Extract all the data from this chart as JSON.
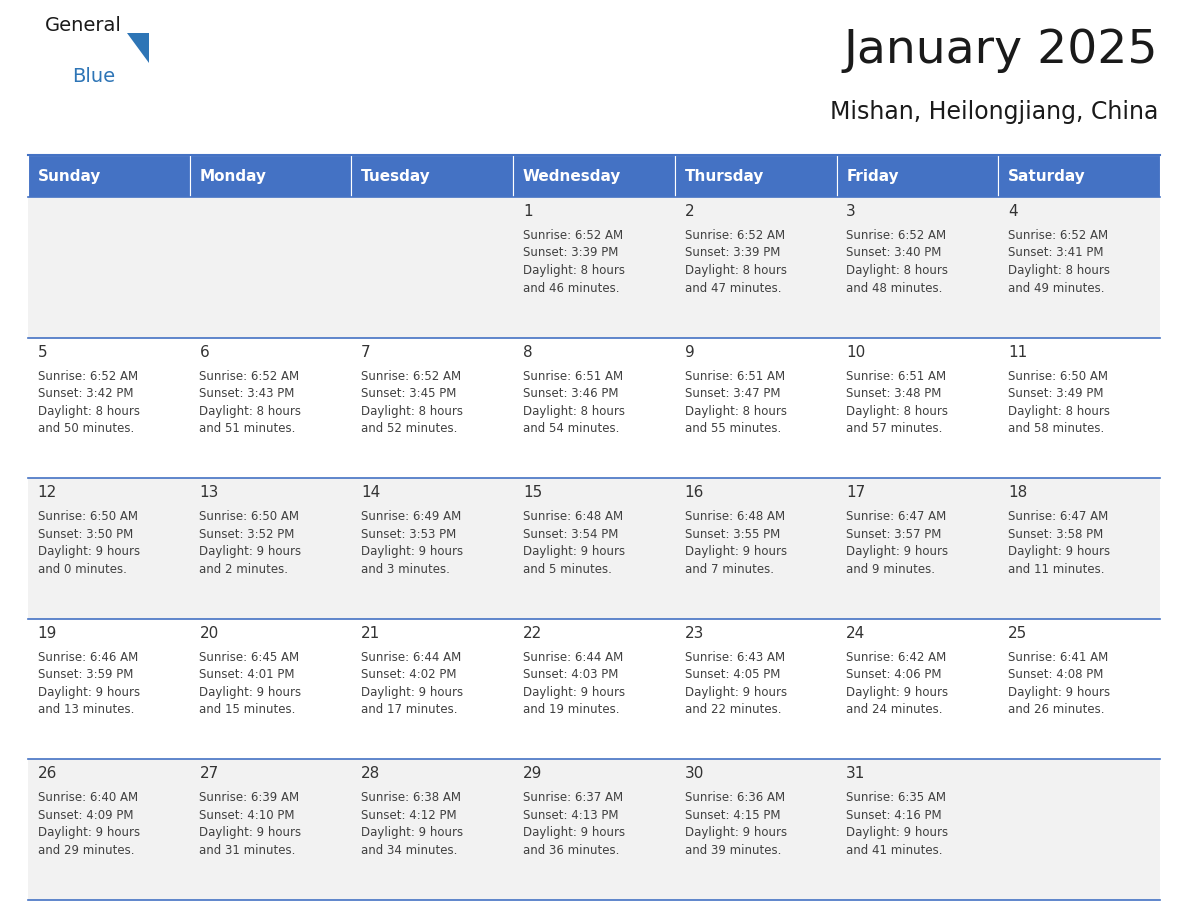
{
  "title": "January 2025",
  "subtitle": "Mishan, Heilongjiang, China",
  "days_of_week": [
    "Sunday",
    "Monday",
    "Tuesday",
    "Wednesday",
    "Thursday",
    "Friday",
    "Saturday"
  ],
  "header_bg": "#4472C4",
  "header_text": "#FFFFFF",
  "row_bg_odd": "#F2F2F2",
  "row_bg_even": "#FFFFFF",
  "cell_text_color": "#404040",
  "day_num_color": "#333333",
  "border_color": "#4472C4",
  "title_color": "#1a1a1a",
  "subtitle_color": "#1a1a1a",
  "calendar_data": [
    [
      {
        "day": "",
        "sunrise": "",
        "sunset": "",
        "daylight": ""
      },
      {
        "day": "",
        "sunrise": "",
        "sunset": "",
        "daylight": ""
      },
      {
        "day": "",
        "sunrise": "",
        "sunset": "",
        "daylight": ""
      },
      {
        "day": "1",
        "sunrise": "6:52 AM",
        "sunset": "3:39 PM",
        "daylight_line1": "8 hours",
        "daylight_line2": "and 46 minutes."
      },
      {
        "day": "2",
        "sunrise": "6:52 AM",
        "sunset": "3:39 PM",
        "daylight_line1": "8 hours",
        "daylight_line2": "and 47 minutes."
      },
      {
        "day": "3",
        "sunrise": "6:52 AM",
        "sunset": "3:40 PM",
        "daylight_line1": "8 hours",
        "daylight_line2": "and 48 minutes."
      },
      {
        "day": "4",
        "sunrise": "6:52 AM",
        "sunset": "3:41 PM",
        "daylight_line1": "8 hours",
        "daylight_line2": "and 49 minutes."
      }
    ],
    [
      {
        "day": "5",
        "sunrise": "6:52 AM",
        "sunset": "3:42 PM",
        "daylight_line1": "8 hours",
        "daylight_line2": "and 50 minutes."
      },
      {
        "day": "6",
        "sunrise": "6:52 AM",
        "sunset": "3:43 PM",
        "daylight_line1": "8 hours",
        "daylight_line2": "and 51 minutes."
      },
      {
        "day": "7",
        "sunrise": "6:52 AM",
        "sunset": "3:45 PM",
        "daylight_line1": "8 hours",
        "daylight_line2": "and 52 minutes."
      },
      {
        "day": "8",
        "sunrise": "6:51 AM",
        "sunset": "3:46 PM",
        "daylight_line1": "8 hours",
        "daylight_line2": "and 54 minutes."
      },
      {
        "day": "9",
        "sunrise": "6:51 AM",
        "sunset": "3:47 PM",
        "daylight_line1": "8 hours",
        "daylight_line2": "and 55 minutes."
      },
      {
        "day": "10",
        "sunrise": "6:51 AM",
        "sunset": "3:48 PM",
        "daylight_line1": "8 hours",
        "daylight_line2": "and 57 minutes."
      },
      {
        "day": "11",
        "sunrise": "6:50 AM",
        "sunset": "3:49 PM",
        "daylight_line1": "8 hours",
        "daylight_line2": "and 58 minutes."
      }
    ],
    [
      {
        "day": "12",
        "sunrise": "6:50 AM",
        "sunset": "3:50 PM",
        "daylight_line1": "9 hours",
        "daylight_line2": "and 0 minutes."
      },
      {
        "day": "13",
        "sunrise": "6:50 AM",
        "sunset": "3:52 PM",
        "daylight_line1": "9 hours",
        "daylight_line2": "and 2 minutes."
      },
      {
        "day": "14",
        "sunrise": "6:49 AM",
        "sunset": "3:53 PM",
        "daylight_line1": "9 hours",
        "daylight_line2": "and 3 minutes."
      },
      {
        "day": "15",
        "sunrise": "6:48 AM",
        "sunset": "3:54 PM",
        "daylight_line1": "9 hours",
        "daylight_line2": "and 5 minutes."
      },
      {
        "day": "16",
        "sunrise": "6:48 AM",
        "sunset": "3:55 PM",
        "daylight_line1": "9 hours",
        "daylight_line2": "and 7 minutes."
      },
      {
        "day": "17",
        "sunrise": "6:47 AM",
        "sunset": "3:57 PM",
        "daylight_line1": "9 hours",
        "daylight_line2": "and 9 minutes."
      },
      {
        "day": "18",
        "sunrise": "6:47 AM",
        "sunset": "3:58 PM",
        "daylight_line1": "9 hours",
        "daylight_line2": "and 11 minutes."
      }
    ],
    [
      {
        "day": "19",
        "sunrise": "6:46 AM",
        "sunset": "3:59 PM",
        "daylight_line1": "9 hours",
        "daylight_line2": "and 13 minutes."
      },
      {
        "day": "20",
        "sunrise": "6:45 AM",
        "sunset": "4:01 PM",
        "daylight_line1": "9 hours",
        "daylight_line2": "and 15 minutes."
      },
      {
        "day": "21",
        "sunrise": "6:44 AM",
        "sunset": "4:02 PM",
        "daylight_line1": "9 hours",
        "daylight_line2": "and 17 minutes."
      },
      {
        "day": "22",
        "sunrise": "6:44 AM",
        "sunset": "4:03 PM",
        "daylight_line1": "9 hours",
        "daylight_line2": "and 19 minutes."
      },
      {
        "day": "23",
        "sunrise": "6:43 AM",
        "sunset": "4:05 PM",
        "daylight_line1": "9 hours",
        "daylight_line2": "and 22 minutes."
      },
      {
        "day": "24",
        "sunrise": "6:42 AM",
        "sunset": "4:06 PM",
        "daylight_line1": "9 hours",
        "daylight_line2": "and 24 minutes."
      },
      {
        "day": "25",
        "sunrise": "6:41 AM",
        "sunset": "4:08 PM",
        "daylight_line1": "9 hours",
        "daylight_line2": "and 26 minutes."
      }
    ],
    [
      {
        "day": "26",
        "sunrise": "6:40 AM",
        "sunset": "4:09 PM",
        "daylight_line1": "9 hours",
        "daylight_line2": "and 29 minutes."
      },
      {
        "day": "27",
        "sunrise": "6:39 AM",
        "sunset": "4:10 PM",
        "daylight_line1": "9 hours",
        "daylight_line2": "and 31 minutes."
      },
      {
        "day": "28",
        "sunrise": "6:38 AM",
        "sunset": "4:12 PM",
        "daylight_line1": "9 hours",
        "daylight_line2": "and 34 minutes."
      },
      {
        "day": "29",
        "sunrise": "6:37 AM",
        "sunset": "4:13 PM",
        "daylight_line1": "9 hours",
        "daylight_line2": "and 36 minutes."
      },
      {
        "day": "30",
        "sunrise": "6:36 AM",
        "sunset": "4:15 PM",
        "daylight_line1": "9 hours",
        "daylight_line2": "and 39 minutes."
      },
      {
        "day": "31",
        "sunrise": "6:35 AM",
        "sunset": "4:16 PM",
        "daylight_line1": "9 hours",
        "daylight_line2": "and 41 minutes."
      },
      {
        "day": "",
        "sunrise": "",
        "sunset": "",
        "daylight_line1": "",
        "daylight_line2": ""
      }
    ]
  ]
}
